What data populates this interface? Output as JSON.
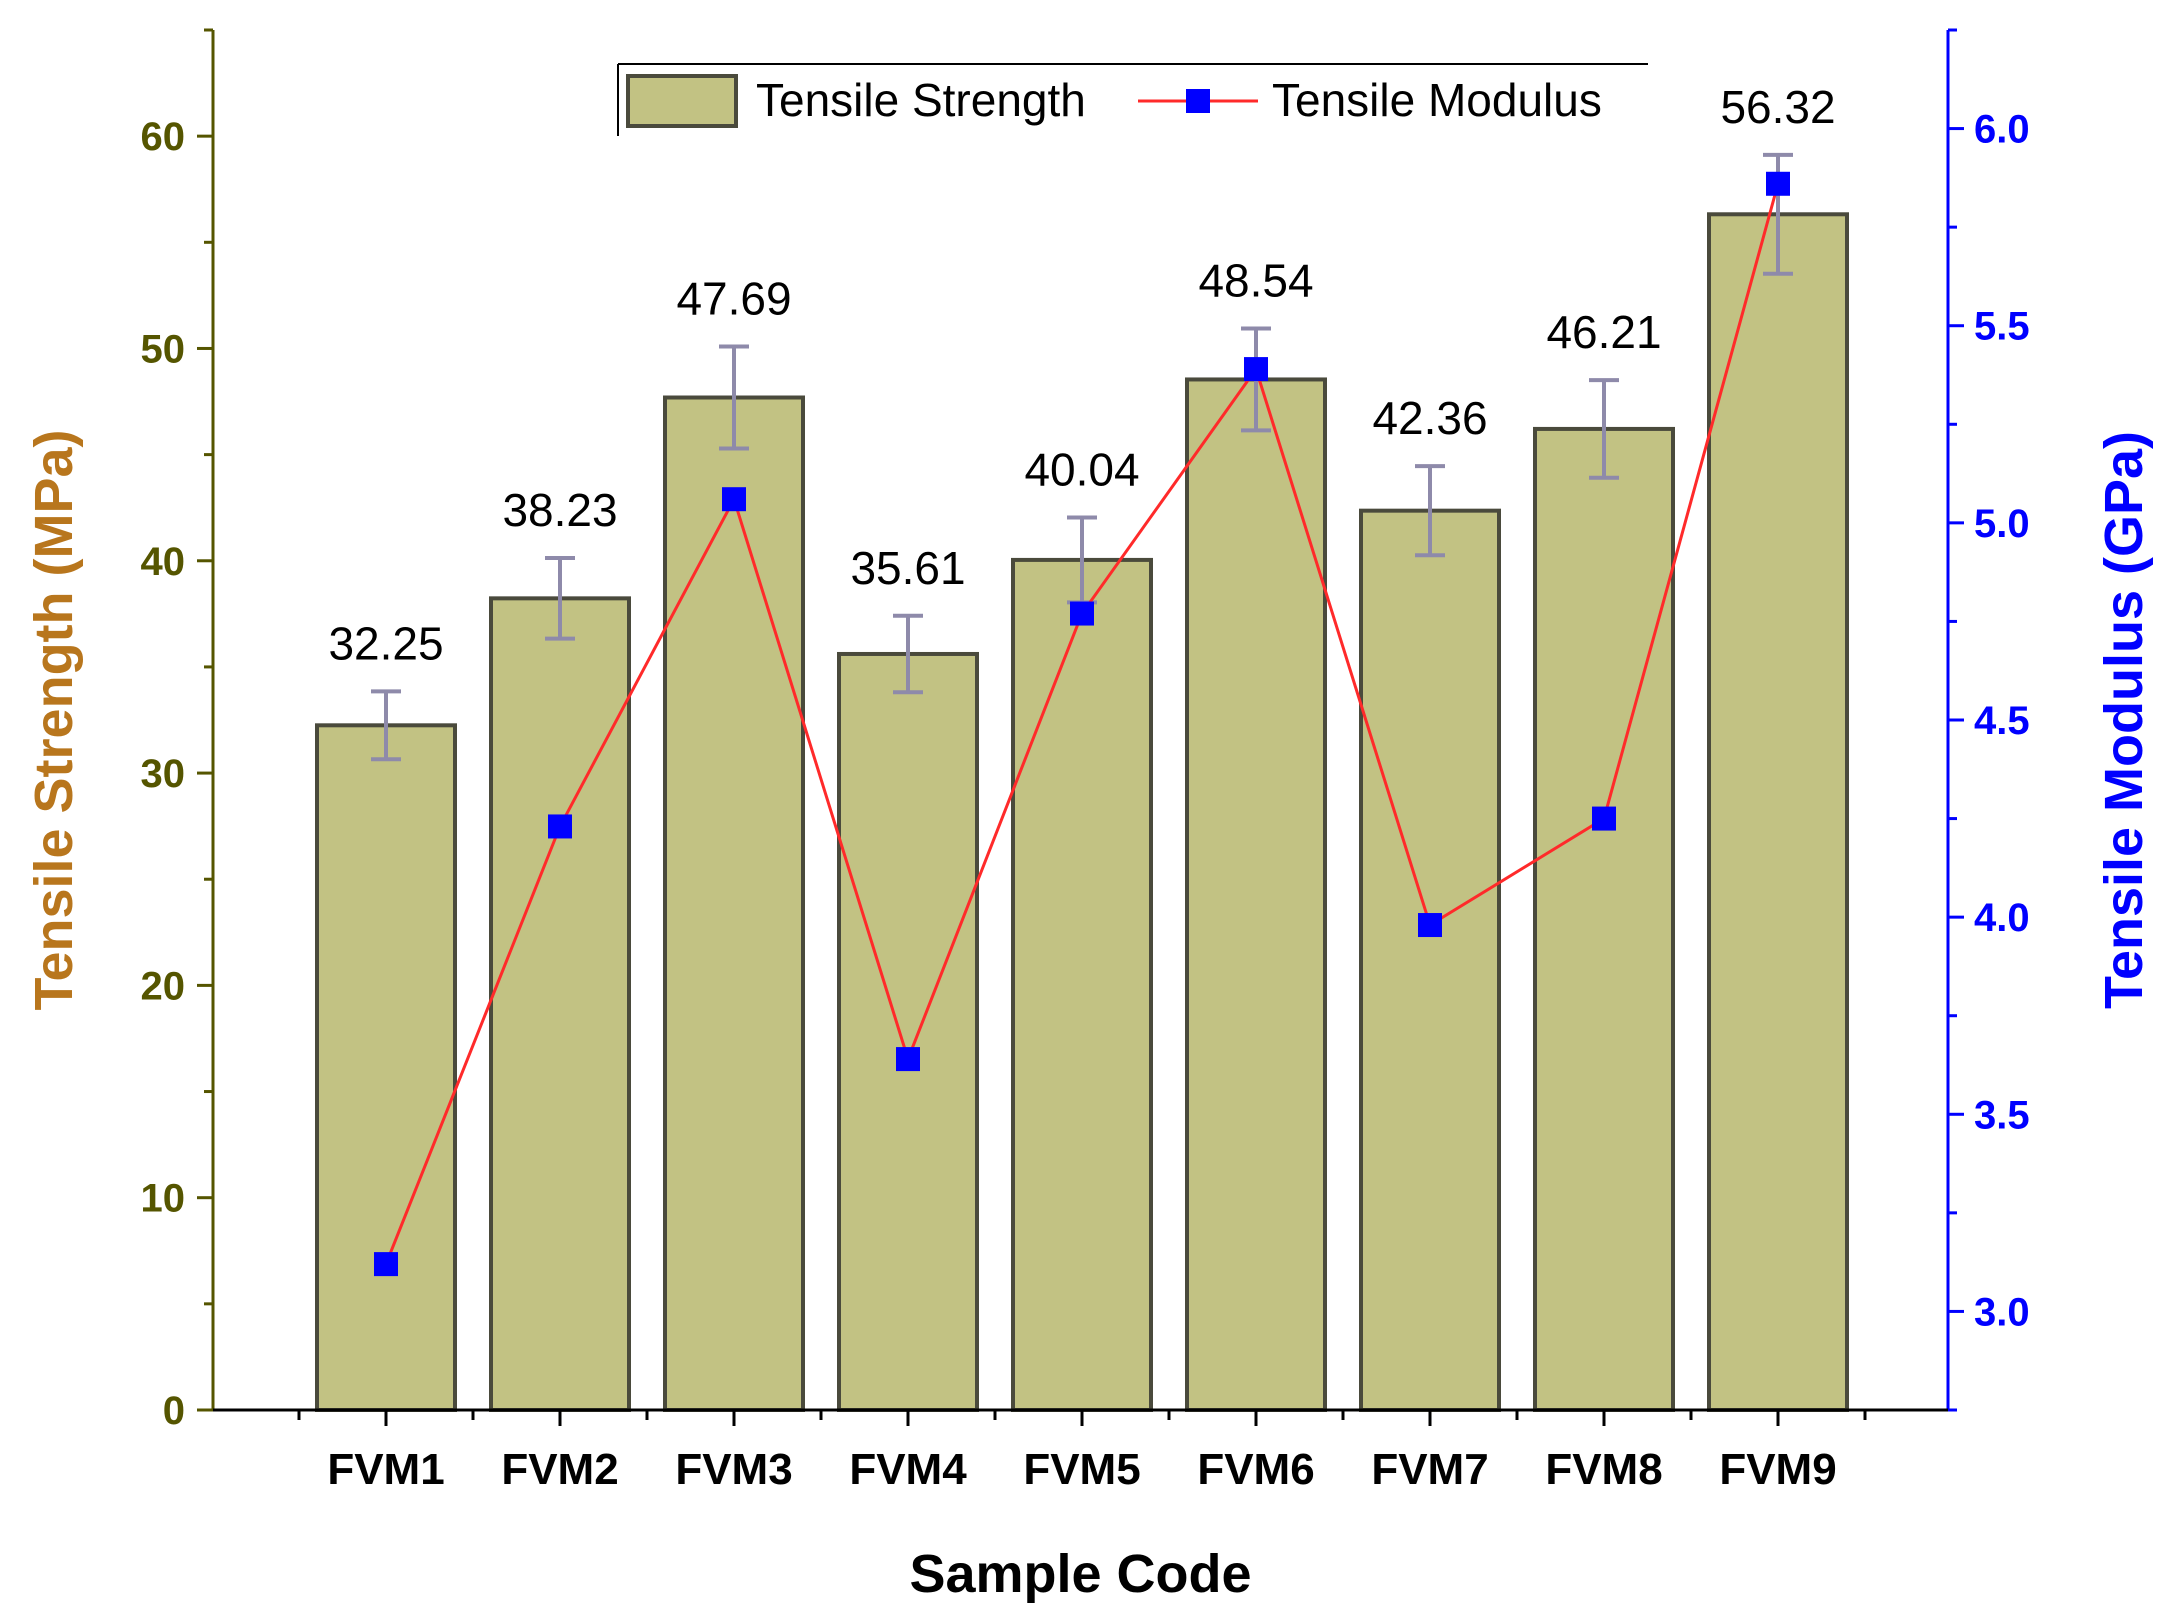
{
  "chart_data": {
    "type": "bar",
    "categories": [
      "FVM1",
      "FVM2",
      "FVM3",
      "FVM4",
      "FVM5",
      "FVM6",
      "FVM7",
      "FVM8",
      "FVM9"
    ],
    "series": [
      {
        "name": "Tensile Strength",
        "axis": "left",
        "type": "bar",
        "values": [
          32.25,
          38.23,
          47.69,
          35.61,
          40.04,
          48.54,
          42.36,
          46.21,
          56.32
        ],
        "value_labels": [
          "32.25",
          "38.23",
          "47.69",
          "35.61",
          "40.04",
          "48.54",
          "42.36",
          "46.21",
          "56.32"
        ],
        "errors": [
          1.6,
          1.9,
          2.4,
          1.8,
          2.0,
          2.4,
          2.1,
          2.3,
          2.8
        ]
      },
      {
        "name": "Tensile Modulus",
        "axis": "right",
        "type": "line",
        "values": [
          3.12,
          4.23,
          5.06,
          3.64,
          4.77,
          5.39,
          3.98,
          4.25,
          5.86
        ]
      }
    ],
    "xlabel": "Sample Code",
    "ylabel": "Tensile Strength (MPa)",
    "y2label": "Tensile Modulus (GPa)",
    "ylim": [
      0,
      65
    ],
    "y2lim": [
      2.75,
      6.25
    ],
    "yticks": [
      0,
      10,
      20,
      30,
      40,
      50,
      60
    ],
    "ytick_labels": [
      "0",
      "10",
      "20",
      "30",
      "40",
      "50",
      "60"
    ],
    "y2ticks": [
      3.0,
      3.5,
      4.0,
      4.5,
      5.0,
      5.5,
      6.0
    ],
    "y2tick_labels": [
      "3.0",
      "3.5",
      "4.0",
      "4.5",
      "5.0",
      "5.5",
      "6.0"
    ],
    "legend": {
      "position": "top-center",
      "bar_label": "Tensile Strength",
      "line_label": "Tensile Modulus"
    },
    "colors": {
      "bar_fill": "#c2c283",
      "bar_edge": "#4a4a3c",
      "error_bar": "#8e8aaa",
      "line": "#ff2a2a",
      "marker": "#0000ff",
      "left_axis": "#555500",
      "left_title": "#b8761d",
      "right_axis": "#0000ff",
      "right_title": "#0000ff"
    },
    "grid": false
  }
}
